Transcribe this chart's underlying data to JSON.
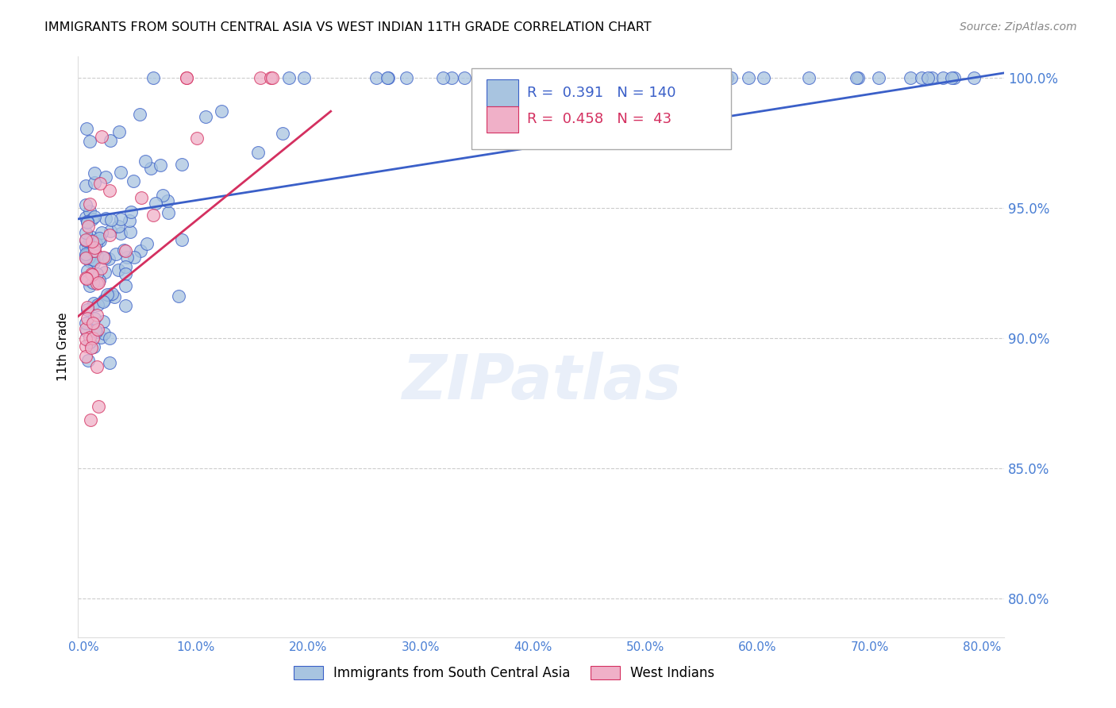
{
  "title": "IMMIGRANTS FROM SOUTH CENTRAL ASIA VS WEST INDIAN 11TH GRADE CORRELATION CHART",
  "source": "Source: ZipAtlas.com",
  "xlabel_ticks": [
    "0.0%",
    "10.0%",
    "20.0%",
    "30.0%",
    "40.0%",
    "50.0%",
    "60.0%",
    "70.0%",
    "80.0%"
  ],
  "xlabel_vals": [
    0.0,
    0.1,
    0.2,
    0.3,
    0.4,
    0.5,
    0.6,
    0.7,
    0.8
  ],
  "ylabel": "11th Grade",
  "ylim": [
    0.785,
    1.008
  ],
  "xlim": [
    -0.005,
    0.82
  ],
  "yticks": [
    0.8,
    0.85,
    0.9,
    0.95,
    1.0
  ],
  "ytick_labels": [
    "80.0%",
    "85.0%",
    "90.0%",
    "95.0%",
    "100.0%"
  ],
  "legend_blue_R": "0.391",
  "legend_blue_N": "140",
  "legend_pink_R": "0.458",
  "legend_pink_N": " 43",
  "blue_color": "#a8c4e0",
  "pink_color": "#f0b0c8",
  "blue_line_color": "#3a5fc8",
  "pink_line_color": "#d43060",
  "axis_color": "#4a7fd4",
  "grid_color": "#cccccc",
  "watermark": "ZIPatlas"
}
